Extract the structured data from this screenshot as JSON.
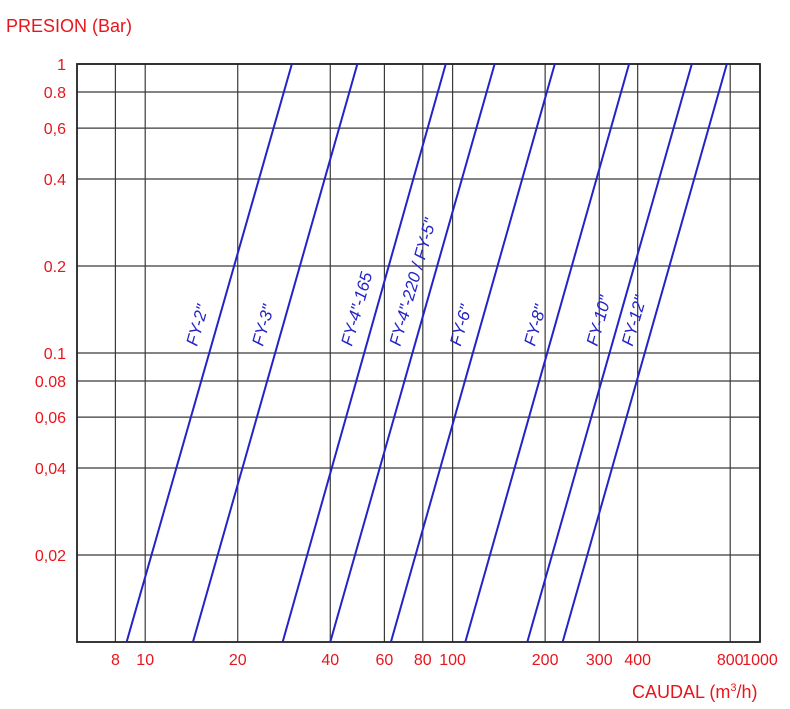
{
  "chart_data": {
    "type": "line",
    "title": "",
    "ylabel": "PRESION (Bar)",
    "xlabel_main": "CAUDAL (m",
    "xlabel_sup": "3",
    "xlabel_end": "/h)",
    "x_scale": "log",
    "y_scale": "log",
    "xlim": [
      6,
      1000
    ],
    "ylim": [
      0.01,
      1
    ],
    "grid": true,
    "colors": {
      "axis_text": "#e8151c",
      "series": "#2323c8",
      "grid": "#3a3a3a"
    },
    "x_ticks": [
      {
        "value": 8,
        "label": "8"
      },
      {
        "value": 10,
        "label": "10"
      },
      {
        "value": 20,
        "label": "20"
      },
      {
        "value": 40,
        "label": "40"
      },
      {
        "value": 60,
        "label": "60"
      },
      {
        "value": 80,
        "label": "80"
      },
      {
        "value": 100,
        "label": "100"
      },
      {
        "value": 200,
        "label": "200"
      },
      {
        "value": 300,
        "label": "300"
      },
      {
        "value": 400,
        "label": "400"
      },
      {
        "value": 800,
        "label": "800"
      },
      {
        "value": 1000,
        "label": "1000"
      }
    ],
    "y_ticks": [
      {
        "value": 1,
        "label": "1"
      },
      {
        "value": 0.8,
        "label": "0.8"
      },
      {
        "value": 0.6,
        "label": "0,6"
      },
      {
        "value": 0.4,
        "label": "0.4"
      },
      {
        "value": 0.2,
        "label": "0.2"
      },
      {
        "value": 0.1,
        "label": "0.1"
      },
      {
        "value": 0.08,
        "label": "0.08"
      },
      {
        "value": 0.06,
        "label": "0,06"
      },
      {
        "value": 0.04,
        "label": "0,04"
      },
      {
        "value": 0.02,
        "label": "0,02"
      }
    ],
    "series": [
      {
        "name": "FY-2\"",
        "x": [
          8.7,
          30
        ],
        "y": [
          0.01,
          1
        ]
      },
      {
        "name": "FY-3\"",
        "x": [
          14.3,
          49
        ],
        "y": [
          0.01,
          1
        ]
      },
      {
        "name": "FY-4\"-165",
        "x": [
          28,
          95
        ],
        "y": [
          0.01,
          1
        ]
      },
      {
        "name": "FY-4\"-220 / FY-5\"",
        "x": [
          40,
          137
        ],
        "y": [
          0.01,
          1
        ]
      },
      {
        "name": "FY-6\"",
        "x": [
          63,
          215
        ],
        "y": [
          0.01,
          1
        ]
      },
      {
        "name": "FY-8\"",
        "x": [
          110,
          375
        ],
        "y": [
          0.01,
          1
        ]
      },
      {
        "name": "FY-10\"",
        "x": [
          175,
          600
        ],
        "y": [
          0.01,
          1
        ]
      },
      {
        "name": "FY-12\"",
        "x": [
          228,
          780
        ],
        "y": [
          0.01,
          1
        ]
      }
    ]
  }
}
